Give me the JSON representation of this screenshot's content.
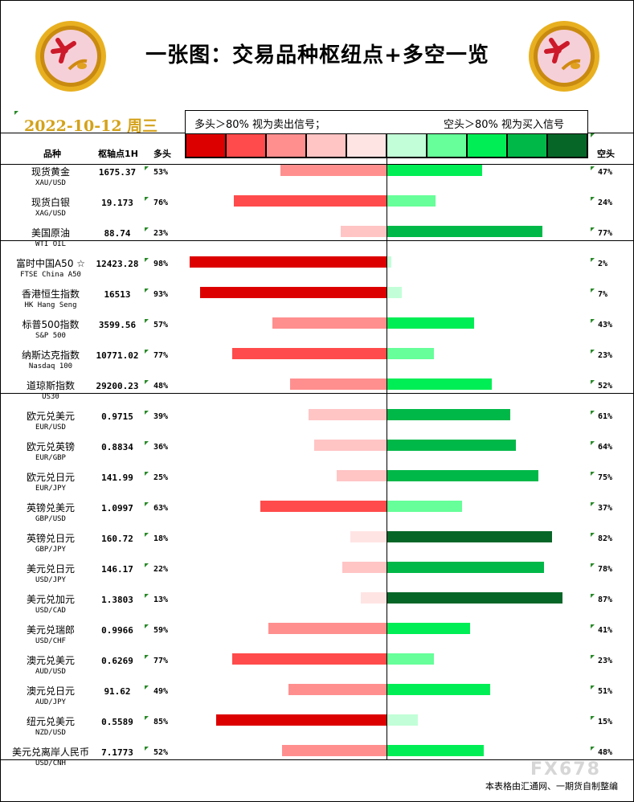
{
  "header": {
    "title": "一张图：交易品种枢纽点+多空一览",
    "date": "2022-10-12 周三"
  },
  "legend": {
    "long_note": "多头＞80% 视为卖出信号；",
    "short_note": "空头＞80% 视为买入信号",
    "colors": [
      "#dd0000",
      "#ff4b4b",
      "#ff8f8f",
      "#ffc4c4",
      "#ffe4e4",
      "#c2ffd8",
      "#66ff99",
      "#00ee55",
      "#00b848",
      "#066628"
    ]
  },
  "columns": {
    "instrument": "品种",
    "pivot": "枢轴点1H",
    "long": "多头",
    "short": "空头"
  },
  "footer": "本表格由汇通网、一期货自制整编",
  "watermark": "FX678",
  "chart_data": {
    "type": "bar",
    "orientation": "horizontal-diverging",
    "series_keys": [
      "long",
      "short"
    ],
    "group_breaks_after": [
      2,
      7
    ],
    "rows": [
      {
        "name": "现货黄金",
        "code": "XAU/USD",
        "pivot": "1675.37",
        "long": 53,
        "short": 47,
        "long_label": "53%",
        "short_label": "47%"
      },
      {
        "name": "现货白银",
        "code": "XAG/USD",
        "pivot": "19.173",
        "long": 76,
        "short": 24,
        "long_label": "76%",
        "short_label": "24%"
      },
      {
        "name": "美国原油",
        "code": "WTI OIL",
        "pivot": "88.74",
        "long": 23,
        "short": 77,
        "long_label": "23%",
        "short_label": "77%"
      },
      {
        "name": "富时中国A50 ☆",
        "code": "FTSE China A50",
        "pivot": "12423.28",
        "long": 98,
        "short": 2,
        "long_label": "98%",
        "short_label": "2%"
      },
      {
        "name": "香港恒生指数",
        "code": "HK Hang Seng",
        "pivot": "16513",
        "long": 93,
        "short": 7,
        "long_label": "93%",
        "short_label": "7%"
      },
      {
        "name": "标普500指数",
        "code": "S&P 500",
        "pivot": "3599.56",
        "long": 57,
        "short": 43,
        "long_label": "57%",
        "short_label": "43%"
      },
      {
        "name": "纳斯达克指数",
        "code": "Nasdaq 100",
        "pivot": "10771.02",
        "long": 77,
        "short": 23,
        "long_label": "77%",
        "short_label": "23%"
      },
      {
        "name": "道琼斯指数",
        "code": "US30",
        "pivot": "29200.23",
        "long": 48,
        "short": 52,
        "long_label": "48%",
        "short_label": "52%"
      },
      {
        "name": "欧元兑美元",
        "code": "EUR/USD",
        "pivot": "0.9715",
        "long": 39,
        "short": 61,
        "long_label": "39%",
        "short_label": "61%"
      },
      {
        "name": "欧元兑英镑",
        "code": "EUR/GBP",
        "pivot": "0.8834",
        "long": 36,
        "short": 64,
        "long_label": "36%",
        "short_label": "64%"
      },
      {
        "name": "欧元兑日元",
        "code": "EUR/JPY",
        "pivot": "141.99",
        "long": 25,
        "short": 75,
        "long_label": "25%",
        "short_label": "75%"
      },
      {
        "name": "英镑兑美元",
        "code": "GBP/USD",
        "pivot": "1.0997",
        "long": 63,
        "short": 37,
        "long_label": "63%",
        "short_label": "37%"
      },
      {
        "name": "英镑兑日元",
        "code": "GBP/JPY",
        "pivot": "160.72",
        "long": 18,
        "short": 82,
        "long_label": "18%",
        "short_label": "82%"
      },
      {
        "name": "美元兑日元",
        "code": "USD/JPY",
        "pivot": "146.17",
        "long": 22,
        "short": 78,
        "long_label": "22%",
        "short_label": "78%"
      },
      {
        "name": "美元兑加元",
        "code": "USD/CAD",
        "pivot": "1.3803",
        "long": 13,
        "short": 87,
        "long_label": "13%",
        "short_label": "87%"
      },
      {
        "name": "美元兑瑞郎",
        "code": "USD/CHF",
        "pivot": "0.9966",
        "long": 59,
        "short": 41,
        "long_label": "59%",
        "short_label": "41%"
      },
      {
        "name": "澳元兑美元",
        "code": "AUD/USD",
        "pivot": "0.6269",
        "long": 77,
        "short": 23,
        "long_label": "77%",
        "short_label": "23%"
      },
      {
        "name": "澳元兑日元",
        "code": "AUD/JPY",
        "pivot": "91.62",
        "long": 49,
        "short": 51,
        "long_label": "49%",
        "short_label": "51%"
      },
      {
        "name": "纽元兑美元",
        "code": "NZD/USD",
        "pivot": "0.5589",
        "long": 85,
        "short": 15,
        "long_label": "85%",
        "short_label": "15%"
      },
      {
        "name": "美元兑离岸人民币",
        "code": "USD/CNH",
        "pivot": "7.1773",
        "long": 52,
        "short": 48,
        "long_label": "52%",
        "short_label": "48%"
      }
    ]
  }
}
